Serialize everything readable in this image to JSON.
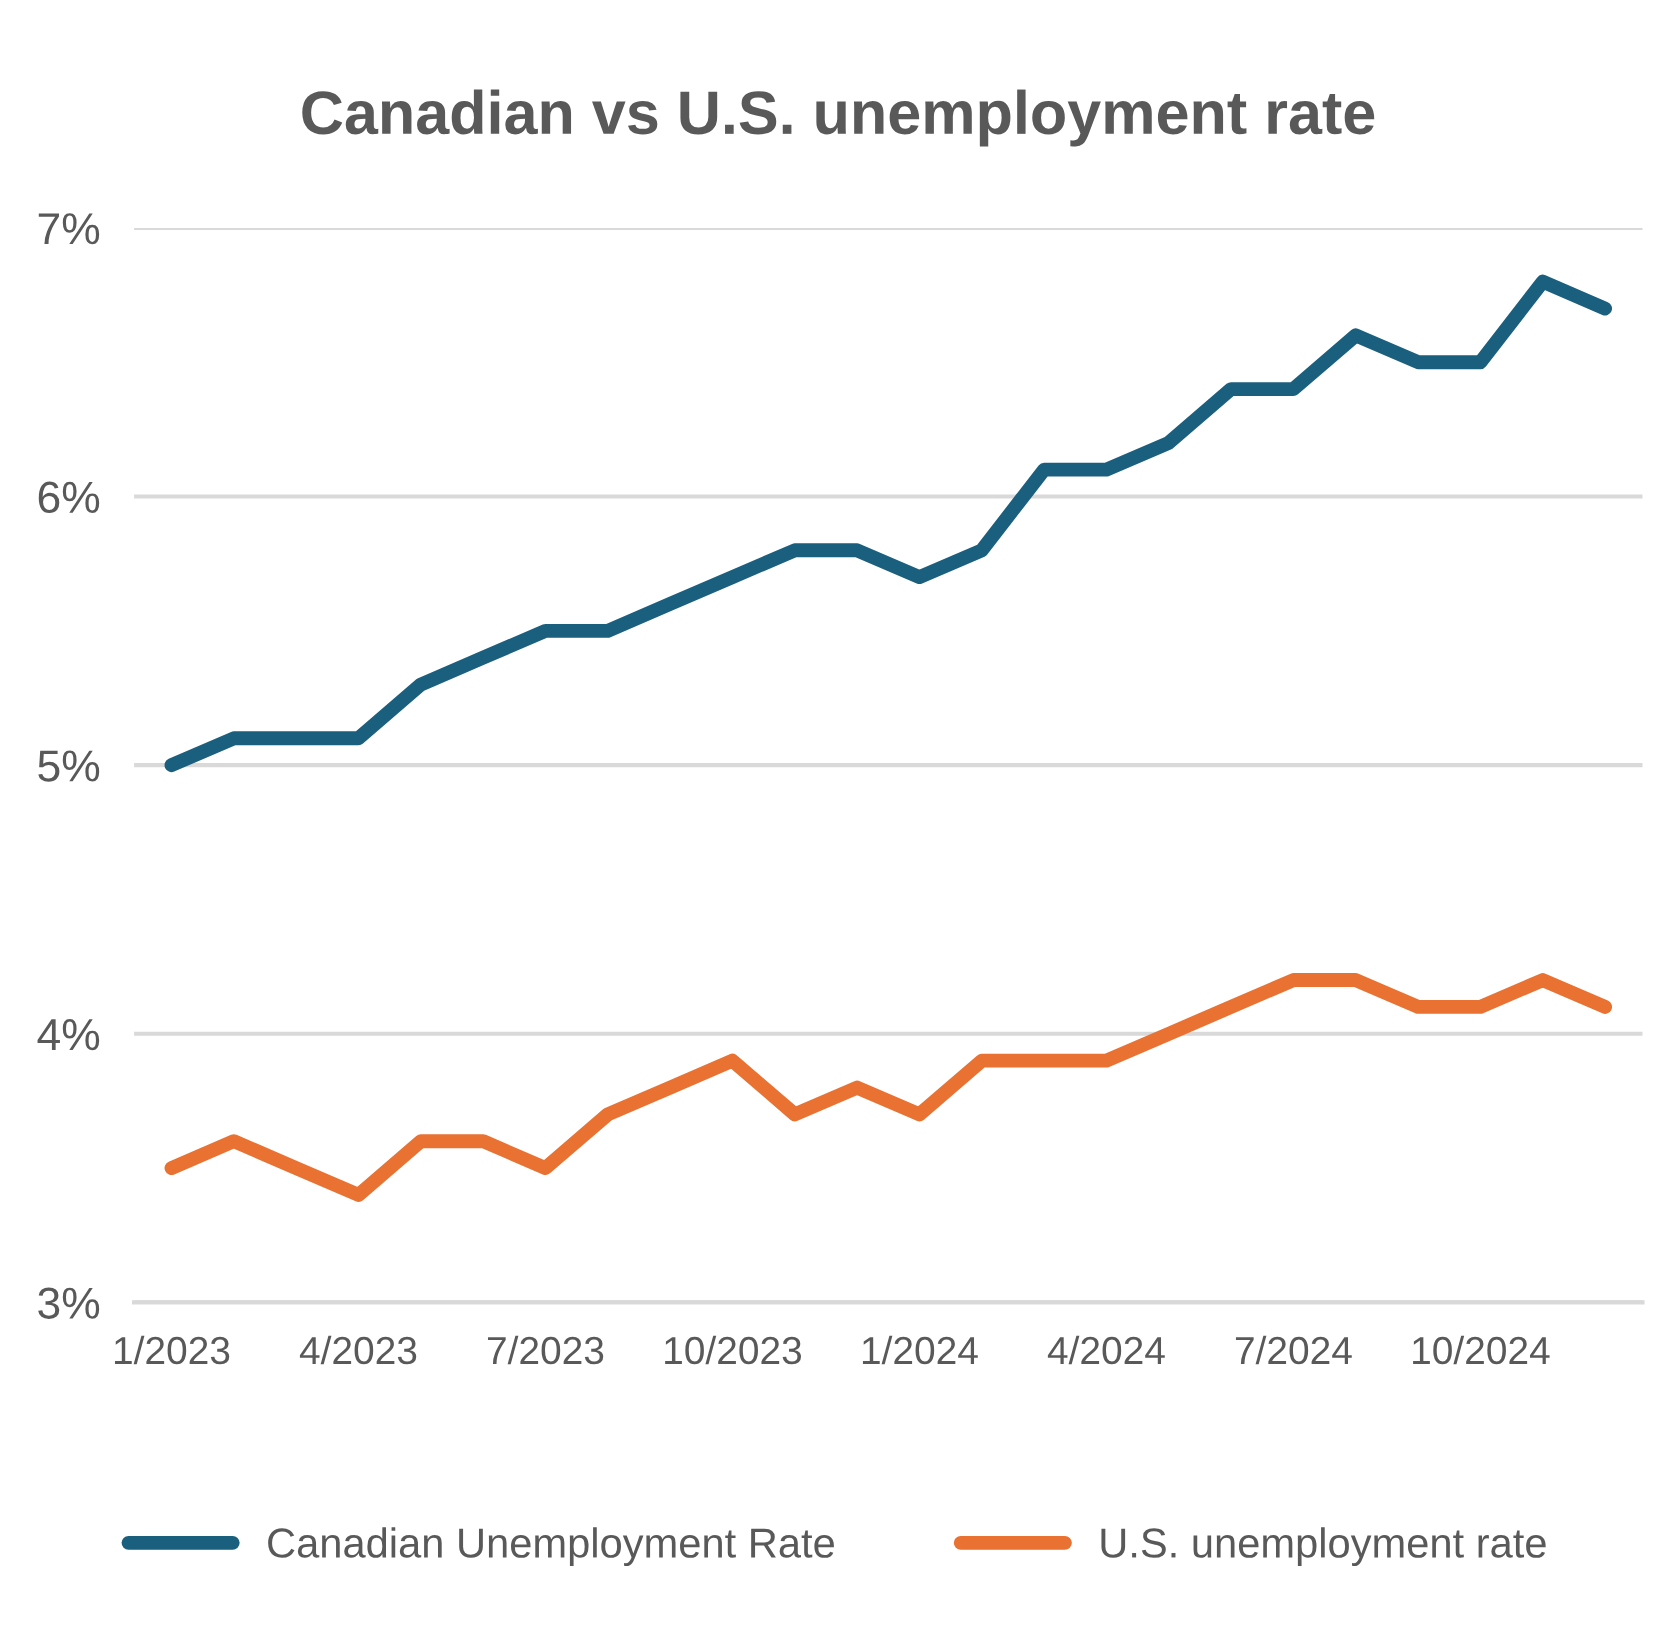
{
  "chart_data": {
    "type": "line",
    "title": "Canadian vs U.S. unemployment rate",
    "categories": [
      "1/2023",
      null,
      null,
      "4/2023",
      null,
      null,
      "7/2023",
      null,
      null,
      "10/2023",
      null,
      null,
      "1/2024",
      null,
      null,
      "4/2024",
      null,
      null,
      "7/2024",
      null,
      null,
      "10/2024",
      null,
      null
    ],
    "series": [
      {
        "name": "Canadian Unemployment Rate",
        "color": "#1b5f7e",
        "values": [
          5.0,
          5.1,
          5.1,
          5.1,
          5.3,
          5.4,
          5.5,
          5.5,
          5.6,
          5.7,
          5.8,
          5.8,
          5.7,
          5.8,
          6.1,
          6.1,
          6.2,
          6.4,
          6.4,
          6.6,
          6.5,
          6.5,
          6.8,
          6.7
        ]
      },
      {
        "name": "U.S. unemployment rate",
        "color": "#e97132",
        "values": [
          3.5,
          3.6,
          3.5,
          3.4,
          3.6,
          3.6,
          3.5,
          3.7,
          3.8,
          3.9,
          3.7,
          3.8,
          3.7,
          3.9,
          3.9,
          3.9,
          4.0,
          4.1,
          4.2,
          4.2,
          4.1,
          4.1,
          4.2,
          4.1
        ]
      }
    ],
    "ylim": [
      3,
      7
    ],
    "yticks": [
      {
        "value": 3,
        "label": "3%"
      },
      {
        "value": 4,
        "label": "4%"
      },
      {
        "value": 5,
        "label": "5%"
      },
      {
        "value": 6,
        "label": "6%"
      },
      {
        "value": 7,
        "label": "7%"
      }
    ],
    "grid": "y",
    "legend": "bottom",
    "marker": "none",
    "line_style": "solid"
  }
}
